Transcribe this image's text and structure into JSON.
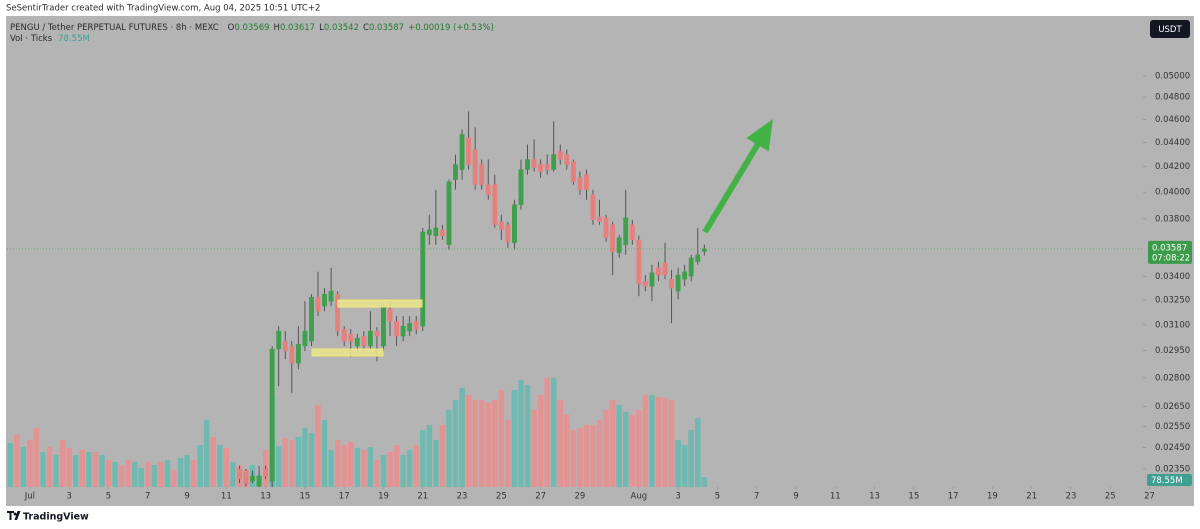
{
  "header": {
    "attribution": "SeSentirTrader created with TradingView.com, Aug 04, 2025 10:51 UTC+2",
    "symbol": "PENGU / Tether PERPETUAL FUTURES · 8h · MEXC",
    "o_label": "O",
    "h_label": "H",
    "l_label": "L",
    "c_label": "C",
    "change": "+0.00019 (+0.53%)",
    "volume_label": "Vol · Ticks",
    "volume_value": "78.55M",
    "currency": "USDT",
    "countdown": "07:08:22",
    "brand": "TradingView"
  },
  "chart_data": {
    "type": "candlestick",
    "log_scale": true,
    "up_color": "#3f9f4c",
    "down_color": "#e5807e",
    "wick_color": "#4a4a4a",
    "categories": [
      null,
      null,
      null,
      null,
      null,
      null,
      null,
      null,
      null,
      null,
      null,
      null,
      null,
      null,
      null,
      null,
      null,
      null,
      null,
      null,
      null,
      null,
      null,
      null,
      null,
      null,
      null,
      null,
      null,
      null,
      null,
      null,
      null,
      null,
      null,
      null,
      null,
      null,
      null,
      null,
      null,
      null,
      null,
      null,
      null,
      null,
      null,
      null,
      null,
      null,
      null,
      null,
      null,
      null,
      null,
      null,
      null,
      null,
      null,
      null,
      null,
      null,
      null,
      null,
      null,
      null,
      null,
      null,
      null,
      null,
      null,
      null,
      null,
      null,
      null,
      null,
      null,
      null,
      null,
      null,
      null,
      null,
      null,
      null,
      null,
      null,
      null,
      null,
      null,
      null,
      null,
      null,
      null,
      null,
      null,
      null,
      null,
      null,
      null,
      null,
      null,
      null,
      null,
      null,
      null,
      null,
      null
    ],
    "open": [
      null,
      null,
      null,
      null,
      null,
      null,
      null,
      null,
      null,
      null,
      null,
      null,
      null,
      null,
      null,
      null,
      null,
      null,
      null,
      null,
      null,
      null,
      null,
      null,
      null,
      null,
      null,
      null,
      null,
      null,
      null,
      null,
      null,
      null,
      null,
      0.0235,
      0.02341,
      0.02295,
      0.02273,
      0.0235,
      0.02295,
      0.02959,
      0.03004,
      0.02976,
      0.02879,
      0.02976,
      0.03004,
      0.03269,
      0.03213,
      0.03244,
      0.03288,
      0.03074,
      0.03045,
      0.02976,
      0.03033,
      0.02976,
      0.03063,
      0.02976,
      0.03194,
      0.03122,
      0.03033,
      0.03063,
      0.03122,
      0.03092,
      0.03685,
      0.03678,
      0.03721,
      0.03615,
      0.04097,
      0.04177,
      0.04443,
      0.04341,
      0.04218,
      0.04058,
      0.04058,
      0.03779,
      0.03757,
      0.03629,
      0.03904,
      0.04177,
      0.04259,
      0.04218,
      0.04218,
      0.04177,
      0.04325,
      0.043,
      0.04242,
      0.04113,
      0.04137,
      0.0398,
      0.03815,
      0.03808,
      0.03757,
      0.0356,
      0.03615,
      0.03757,
      0.0365,
      0.03371,
      0.03339,
      0.03459,
      0.03492,
      0.03384,
      0.03307,
      0.03384,
      0.03404,
      0.03499,
      0.03569
    ],
    "high": [
      null,
      null,
      null,
      null,
      null,
      null,
      null,
      null,
      null,
      null,
      null,
      null,
      null,
      null,
      null,
      null,
      null,
      null,
      null,
      null,
      null,
      null,
      null,
      null,
      null,
      null,
      null,
      null,
      null,
      null,
      null,
      null,
      null,
      null,
      null,
      0.02364,
      0.0235,
      0.02341,
      0.02364,
      0.02364,
      0.02976,
      0.03092,
      0.03063,
      0.03004,
      0.03092,
      0.03244,
      0.03288,
      0.03433,
      0.03326,
      0.03459,
      0.03307,
      0.03092,
      0.03074,
      0.03045,
      0.03063,
      0.03182,
      0.03086,
      0.03225,
      0.03244,
      0.03152,
      0.03152,
      0.03152,
      0.03152,
      0.03735,
      0.0383,
      0.04019,
      0.03757,
      0.04097,
      0.043,
      0.04512,
      0.04672,
      0.0453,
      0.04259,
      0.04259,
      0.04137,
      0.0383,
      0.03779,
      0.03942,
      0.04259,
      0.04383,
      0.04426,
      0.04259,
      0.043,
      0.04583,
      0.04383,
      0.04341,
      0.04259,
      0.04161,
      0.04177,
      0.04019,
      0.03942,
      0.0383,
      0.03779,
      0.03685,
      0.04019,
      0.03793,
      0.03678,
      0.03411,
      0.03479,
      0.03499,
      0.03629,
      0.03446,
      0.03459,
      0.03479,
      0.03546,
      0.03735,
      0.03617
    ],
    "low": [
      null,
      null,
      null,
      null,
      null,
      null,
      null,
      null,
      null,
      null,
      null,
      null,
      null,
      null,
      null,
      null,
      null,
      null,
      null,
      null,
      null,
      null,
      null,
      null,
      null,
      null,
      null,
      null,
      null,
      null,
      null,
      null,
      null,
      null,
      null,
      0.02287,
      0.02273,
      0.02287,
      0.0225,
      0.02305,
      0.02264,
      0.02755,
      0.02902,
      0.02718,
      0.02846,
      0.02947,
      0.02976,
      0.03152,
      0.03182,
      0.03213,
      0.03033,
      0.02976,
      0.02913,
      0.02936,
      0.02947,
      0.02959,
      0.0289,
      0.02947,
      0.03033,
      0.02976,
      0.03004,
      0.03033,
      0.03045,
      0.03063,
      0.03615,
      0.03615,
      0.0365,
      0.0358,
      0.04019,
      0.04097,
      0.04177,
      0.04019,
      0.04019,
      0.03942,
      0.03735,
      0.0365,
      0.03594,
      0.0358,
      0.03867,
      0.04137,
      0.04161,
      0.04113,
      0.04137,
      0.04161,
      0.04218,
      0.04177,
      0.04058,
      0.0398,
      0.03942,
      0.03757,
      0.03757,
      0.03636,
      0.03411,
      0.03526,
      0.03546,
      0.03615,
      0.03275,
      0.03307,
      0.03244,
      0.03371,
      0.03384,
      0.0311,
      0.03256,
      0.03339,
      0.03371,
      0.03479,
      0.03542
    ],
    "close": [
      null,
      null,
      null,
      null,
      null,
      null,
      null,
      null,
      null,
      null,
      null,
      null,
      null,
      null,
      null,
      null,
      null,
      null,
      null,
      null,
      null,
      null,
      null,
      null,
      null,
      null,
      null,
      null,
      null,
      null,
      null,
      null,
      null,
      null,
      null,
      0.02305,
      0.02287,
      0.02318,
      0.02318,
      0.02318,
      0.02959,
      0.03063,
      0.02947,
      0.02879,
      0.02987,
      0.03063,
      0.03269,
      0.03182,
      0.03288,
      0.03307,
      0.03063,
      0.03004,
      0.03004,
      0.03022,
      0.02976,
      0.03063,
      0.03033,
      0.03213,
      0.03122,
      0.03033,
      0.03092,
      0.0311,
      0.03074,
      0.03706,
      0.03721,
      0.03735,
      0.03678,
      0.04081,
      0.04218,
      0.04469,
      0.04218,
      0.04058,
      0.04058,
      0.0398,
      0.03757,
      0.03721,
      0.03636,
      0.03904,
      0.04177,
      0.04259,
      0.04193,
      0.04161,
      0.04177,
      0.043,
      0.04259,
      0.04218,
      0.04081,
      0.04019,
      0.04019,
      0.03793,
      0.03779,
      0.03664,
      0.03567,
      0.03664,
      0.03808,
      0.0365,
      0.03352,
      0.03339,
      0.03426,
      0.03411,
      0.03411,
      0.03326,
      0.03411,
      0.03433,
      0.03526,
      0.03546,
      0.03587
    ],
    "volume": {
      "ylim": [
        0,
        3690
      ],
      "values": [
        346,
        409,
        314,
        369,
        464,
        275,
        314,
        252,
        369,
        307,
        252,
        291,
        275,
        275,
        252,
        212,
        197,
        173,
        212,
        197,
        149,
        197,
        173,
        197,
        212,
        134,
        228,
        252,
        212,
        330,
        527,
        393,
        330,
        307,
        197,
        173,
        134,
        173,
        94,
        291,
        723,
        322,
        385,
        369,
        393,
        464,
        424,
        645,
        527,
        291,
        369,
        330,
        354,
        307,
        291,
        314,
        212,
        252,
        275,
        330,
        252,
        291,
        330,
        448,
        487,
        369,
        487,
        605,
        684,
        778,
        723,
        684,
        684,
        660,
        684,
        762,
        527,
        762,
        841,
        802,
        605,
        723,
        857,
        857,
        684,
        566,
        448,
        464,
        487,
        487,
        527,
        605,
        684,
        645,
        590,
        566,
        605,
        723,
        723,
        707,
        700,
        684,
        369,
        330,
        448,
        542,
        78.55
      ],
      "colors": [
        "#70b9b0",
        "#e29494",
        "#70b9b0",
        "#e29494",
        "#e29494",
        "#70b9b0",
        "#e29494",
        "#70b9b0",
        "#e29494",
        "#e29494",
        "#70b9b0",
        "#e29494",
        "#70b9b0",
        "#e29494",
        "#70b9b0",
        "#e29494",
        "#70b9b0",
        "#e29494",
        "#e29494",
        "#70b9b0",
        "#70b9b0",
        "#e29494",
        "#70b9b0",
        "#e29494",
        "#70b9b0",
        "#e29494",
        "#70b9b0",
        "#70b9b0",
        "#e29494",
        "#70b9b0",
        "#70b9b0",
        "#e29494",
        "#70b9b0",
        "#e29494",
        "#70b9b0",
        "#e29494",
        "#e29494",
        "#70b9b0",
        "#70b9b0",
        "#e29494",
        "#70b9b0",
        "#70b9b0",
        "#e29494",
        "#e29494",
        "#70b9b0",
        "#70b9b0",
        "#70b9b0",
        "#e29494",
        "#70b9b0",
        "#70b9b0",
        "#e29494",
        "#e29494",
        "#e29494",
        "#70b9b0",
        "#e29494",
        "#70b9b0",
        "#e29494",
        "#70b9b0",
        "#e29494",
        "#e29494",
        "#70b9b0",
        "#70b9b0",
        "#e29494",
        "#70b9b0",
        "#70b9b0",
        "#70b9b0",
        "#e29494",
        "#70b9b0",
        "#70b9b0",
        "#70b9b0",
        "#e29494",
        "#e29494",
        "#e29494",
        "#e29494",
        "#e29494",
        "#e29494",
        "#e29494",
        "#70b9b0",
        "#70b9b0",
        "#70b9b0",
        "#e29494",
        "#e29494",
        "#e29494",
        "#70b9b0",
        "#e29494",
        "#e29494",
        "#e29494",
        "#e29494",
        "#e29494",
        "#e29494",
        "#e29494",
        "#e29494",
        "#e29494",
        "#70b9b0",
        "#70b9b0",
        "#e29494",
        "#e29494",
        "#e29494",
        "#70b9b0",
        "#e29494",
        "#e29494",
        "#e29494",
        "#70b9b0",
        "#70b9b0",
        "#70b9b0",
        "#70b9b0",
        "#70b9b0"
      ]
    },
    "ylim": [
      0.0227,
      0.056
    ],
    "yticks": [
      {
        "value": 0.05,
        "label": "0.05000"
      },
      {
        "value": 0.048,
        "label": "0.04800"
      },
      {
        "value": 0.046,
        "label": "0.04600"
      },
      {
        "value": 0.044,
        "label": "0.04400"
      },
      {
        "value": 0.042,
        "label": "0.04200"
      },
      {
        "value": 0.04,
        "label": "0.04000"
      },
      {
        "value": 0.038,
        "label": "0.03800"
      },
      {
        "value": 0.034,
        "label": "0.03400"
      },
      {
        "value": 0.0325,
        "label": "0.03250"
      },
      {
        "value": 0.031,
        "label": "0.03100"
      },
      {
        "value": 0.0295,
        "label": "0.02950"
      },
      {
        "value": 0.028,
        "label": "0.02800"
      },
      {
        "value": 0.0265,
        "label": "0.02650"
      },
      {
        "value": 0.0255,
        "label": "0.02550"
      },
      {
        "value": 0.0245,
        "label": "0.02450"
      },
      {
        "value": 0.0235,
        "label": "0.02350"
      }
    ],
    "xlim": [
      -0.5,
      173
    ],
    "xticks": [
      {
        "value": 3,
        "label": "Jul"
      },
      {
        "value": 9,
        "label": "3"
      },
      {
        "value": 15,
        "label": "5"
      },
      {
        "value": 21,
        "label": "7"
      },
      {
        "value": 27,
        "label": "9"
      },
      {
        "value": 33,
        "label": "11"
      },
      {
        "value": 39,
        "label": "13"
      },
      {
        "value": 45,
        "label": "15"
      },
      {
        "value": 51,
        "label": "17"
      },
      {
        "value": 57,
        "label": "19"
      },
      {
        "value": 63,
        "label": "21"
      },
      {
        "value": 69,
        "label": "23"
      },
      {
        "value": 75,
        "label": "25"
      },
      {
        "value": 81,
        "label": "27"
      },
      {
        "value": 87,
        "label": "29"
      },
      {
        "value": 96,
        "label": "Aug"
      },
      {
        "value": 102,
        "label": "3"
      },
      {
        "value": 108,
        "label": "5"
      },
      {
        "value": 114,
        "label": "7"
      },
      {
        "value": 120,
        "label": "9"
      },
      {
        "value": 126,
        "label": "11"
      },
      {
        "value": 132,
        "label": "13"
      },
      {
        "value": 138,
        "label": "15"
      },
      {
        "value": 144,
        "label": "17"
      },
      {
        "value": 150,
        "label": "19"
      },
      {
        "value": 156,
        "label": "21"
      },
      {
        "value": 162,
        "label": "23"
      },
      {
        "value": 168,
        "label": "25"
      },
      {
        "value": 174,
        "label": "27"
      }
    ]
  }
}
